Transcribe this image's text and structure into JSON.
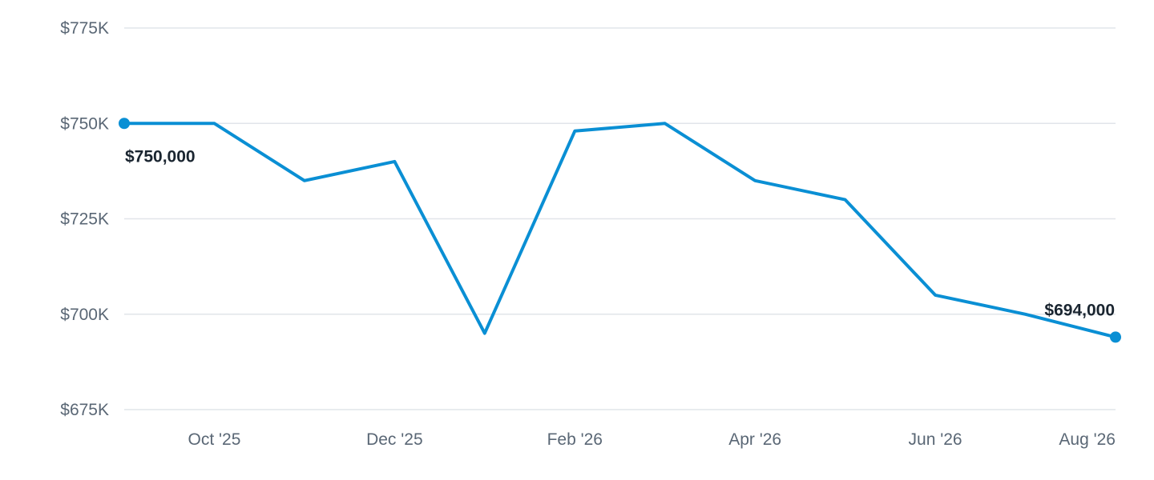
{
  "colors": {
    "series": "#0a8fd4",
    "grid": "#e1e5ea",
    "axis_text": "#5a6775",
    "label_text": "#1a2530"
  },
  "chart_data": {
    "type": "line",
    "title": "",
    "xlabel": "",
    "ylabel": "",
    "grid": true,
    "ylim": [
      675000,
      775000
    ],
    "y_ticks": [
      {
        "value": 775000,
        "label": "$775K"
      },
      {
        "value": 750000,
        "label": "$750K"
      },
      {
        "value": 725000,
        "label": "$725K"
      },
      {
        "value": 700000,
        "label": "$700K"
      },
      {
        "value": 675000,
        "label": "$675K"
      }
    ],
    "xlim": [
      "2025-09",
      "2026-08"
    ],
    "x_ticks": [
      {
        "value": "2025-10",
        "label": "Oct '25"
      },
      {
        "value": "2025-12",
        "label": "Dec '25"
      },
      {
        "value": "2026-02",
        "label": "Feb '26"
      },
      {
        "value": "2026-04",
        "label": "Apr '26"
      },
      {
        "value": "2026-06",
        "label": "Jun '26"
      },
      {
        "value": "2026-08",
        "label": "Aug '26"
      }
    ],
    "series": [
      {
        "points": [
          {
            "x": "2025-09",
            "y": 750000
          },
          {
            "x": "2025-10",
            "y": 750000
          },
          {
            "x": "2025-11",
            "y": 735000
          },
          {
            "x": "2025-12",
            "y": 740000
          },
          {
            "x": "2026-01",
            "y": 695000
          },
          {
            "x": "2026-02",
            "y": 748000
          },
          {
            "x": "2026-03",
            "y": 750000
          },
          {
            "x": "2026-04",
            "y": 735000
          },
          {
            "x": "2026-05",
            "y": 730000
          },
          {
            "x": "2026-06",
            "y": 705000
          },
          {
            "x": "2026-07",
            "y": 700000
          },
          {
            "x": "2026-08",
            "y": 694000
          }
        ]
      }
    ],
    "annotations": [
      {
        "x": "2025-09",
        "y": 750000,
        "label": "$750,000",
        "placement": "below-right"
      },
      {
        "x": "2026-08",
        "y": 694000,
        "label": "$694,000",
        "placement": "above-left"
      }
    ]
  }
}
